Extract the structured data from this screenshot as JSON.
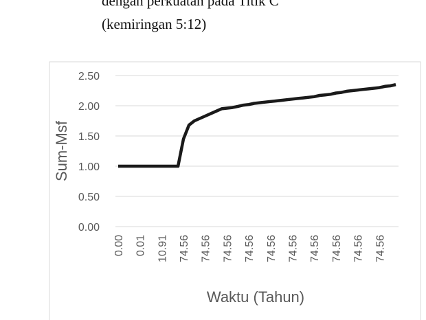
{
  "chart_data": {
    "type": "line",
    "title": [
      "dengan perkuatan pada Titik C",
      "(kemiringan 5:12)"
    ],
    "x_label": "Waktu (Tahun)",
    "y_label": "Sum-Msf",
    "categories": [
      "0.00",
      null,
      null,
      null,
      "0.01",
      null,
      null,
      null,
      "10.91",
      null,
      null,
      null,
      "74.56",
      null,
      null,
      null,
      "74.56",
      null,
      null,
      null,
      "74.56",
      null,
      null,
      null,
      "74.56",
      null,
      null,
      null,
      "74.56",
      null,
      null,
      null,
      "74.56",
      null,
      null,
      null,
      "74.56",
      null,
      null,
      null,
      "74.56",
      null,
      null,
      null,
      "74.56",
      null,
      null,
      null,
      "74.56",
      null,
      null,
      null
    ],
    "values": [
      1.0,
      1.0,
      1.0,
      1.0,
      1.0,
      1.0,
      1.0,
      1.0,
      1.0,
      1.0,
      1.0,
      1.0,
      1.45,
      1.68,
      1.75,
      1.79,
      1.83,
      1.87,
      1.91,
      1.95,
      1.96,
      1.97,
      1.99,
      2.01,
      2.02,
      2.04,
      2.05,
      2.06,
      2.07,
      2.08,
      2.09,
      2.1,
      2.11,
      2.12,
      2.13,
      2.14,
      2.15,
      2.17,
      2.18,
      2.19,
      2.21,
      2.22,
      2.24,
      2.25,
      2.26,
      2.27,
      2.28,
      2.29,
      2.3,
      2.32,
      2.33,
      2.35
    ],
    "color": "#1a1a1a",
    "ylim": [
      0,
      2.5
    ],
    "yticks": [
      {
        "value": 0,
        "label": "0.00"
      },
      {
        "value": 0.5,
        "label": "0.50"
      },
      {
        "value": 1,
        "label": "1.00"
      },
      {
        "value": 1.5,
        "label": "1.50"
      },
      {
        "value": 2,
        "label": "2.00"
      },
      {
        "value": 2.5,
        "label": "2.50"
      }
    ],
    "grid": true
  }
}
